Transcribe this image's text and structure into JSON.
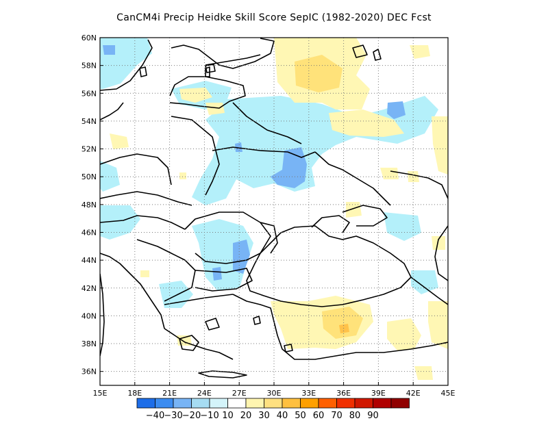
{
  "title": "CanCM4i Precip Heidke Skill Score SepIC (1982-2020) DEC Fcst",
  "map": {
    "lon_range": [
      15,
      45
    ],
    "lat_range": [
      35,
      60
    ],
    "lon_ticks": [
      "15E",
      "18E",
      "21E",
      "24E",
      "27E",
      "30E",
      "33E",
      "36E",
      "39E",
      "42E",
      "45E"
    ],
    "lat_ticks": [
      "36N",
      "38N",
      "40N",
      "42N",
      "44N",
      "46N",
      "48N",
      "50N",
      "52N",
      "54N",
      "56N",
      "58N",
      "60N"
    ],
    "grid": "dotted"
  },
  "colorbar": {
    "labels": [
      "-40",
      "-30",
      "-20",
      "-10",
      "10",
      "20",
      "30",
      "40",
      "50",
      "60",
      "70",
      "80",
      "90"
    ],
    "colors": [
      "#1e6ee8",
      "#3c8cf0",
      "#78b4f5",
      "#a6dcf2",
      "#d4f4fa",
      "#ffffff",
      "#fff5b0",
      "#ffe080",
      "#ffc040",
      "#ffa000",
      "#ff6000",
      "#f03000",
      "#d01800",
      "#b00000",
      "#900000"
    ]
  },
  "fields": {
    "light_blue": "#b4f0fa",
    "mid_blue": "#78b4f5",
    "light_yellow": "#fff7b4",
    "mid_yellow": "#ffe27a",
    "orange": "#ffc24a"
  }
}
